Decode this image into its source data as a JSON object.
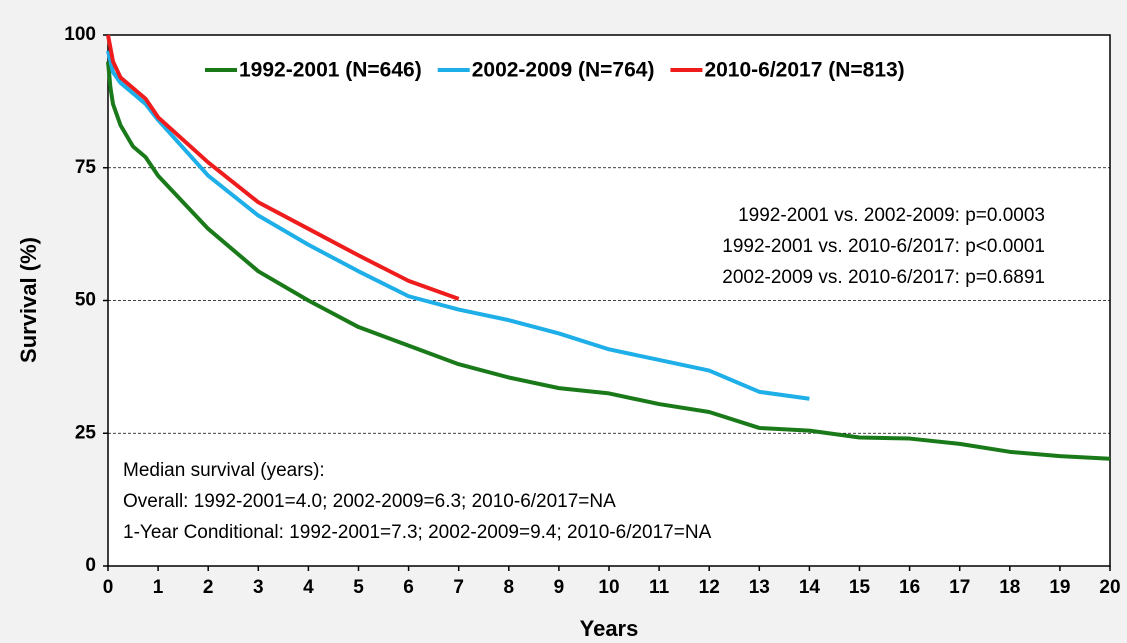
{
  "chart_data": {
    "type": "line",
    "xlabel": "Years",
    "ylabel": "Survival (%)",
    "xlim": [
      0,
      20
    ],
    "xticks": [
      0,
      1,
      2,
      3,
      4,
      5,
      6,
      7,
      8,
      9,
      10,
      11,
      12,
      13,
      14,
      15,
      16,
      17,
      18,
      19,
      20
    ],
    "ylim": [
      0,
      100
    ],
    "yticks": [
      0,
      25,
      50,
      75,
      100
    ],
    "grid": true,
    "legend": "top",
    "series": [
      {
        "name": "1992-2001 (N=646)",
        "color": "#1a7a1a",
        "x": [
          0,
          0.05,
          0.1,
          0.25,
          0.5,
          0.75,
          1,
          2,
          3,
          4,
          5,
          6,
          7,
          8,
          9,
          10,
          11,
          12,
          13,
          14,
          15,
          16,
          17,
          18,
          19,
          20
        ],
        "values": [
          95,
          90,
          87,
          83,
          79,
          77,
          73.5,
          63.5,
          55.5,
          50,
          45,
          41.5,
          38,
          35.5,
          33.5,
          32.5,
          30.5,
          29,
          26,
          25.5,
          24.2,
          24,
          23,
          21.5,
          20.7,
          20.2
        ]
      },
      {
        "name": "2002-2009 (N=764)",
        "color": "#1eaee8",
        "x": [
          0,
          0.1,
          0.25,
          0.5,
          0.75,
          1,
          2,
          3,
          4,
          5,
          6,
          7,
          8,
          9,
          10,
          11,
          12,
          13,
          14
        ],
        "values": [
          97,
          93,
          91,
          89,
          87,
          84,
          73.5,
          66,
          60.5,
          55.5,
          50.8,
          48.3,
          46.3,
          43.8,
          40.8,
          38.8,
          36.8,
          32.8,
          31.5
        ]
      },
      {
        "name": "2010-6/2017 (N=813)",
        "color": "#ee1c1c",
        "x": [
          0,
          0.1,
          0.25,
          0.5,
          0.75,
          1,
          2,
          3,
          4,
          5,
          6,
          7
        ],
        "values": [
          100,
          95,
          92,
          90,
          88,
          84.5,
          76,
          68.5,
          63.5,
          58.5,
          53.7,
          50.3
        ]
      }
    ],
    "pvalues": [
      "1992-2001 vs. 2002-2009: p=0.0003",
      "1992-2001 vs. 2010-6/2017: p<0.0001",
      "2002-2009 vs. 2010-6/2017: p=0.6891"
    ],
    "median_notes": [
      "Median survival (years):",
      "Overall: 1992-2001=4.0; 2002-2009=6.3; 2010-6/2017=NA",
      "1-Year Conditional: 1992-2001=7.3; 2002-2009=9.4; 2010-6/2017=NA"
    ]
  }
}
